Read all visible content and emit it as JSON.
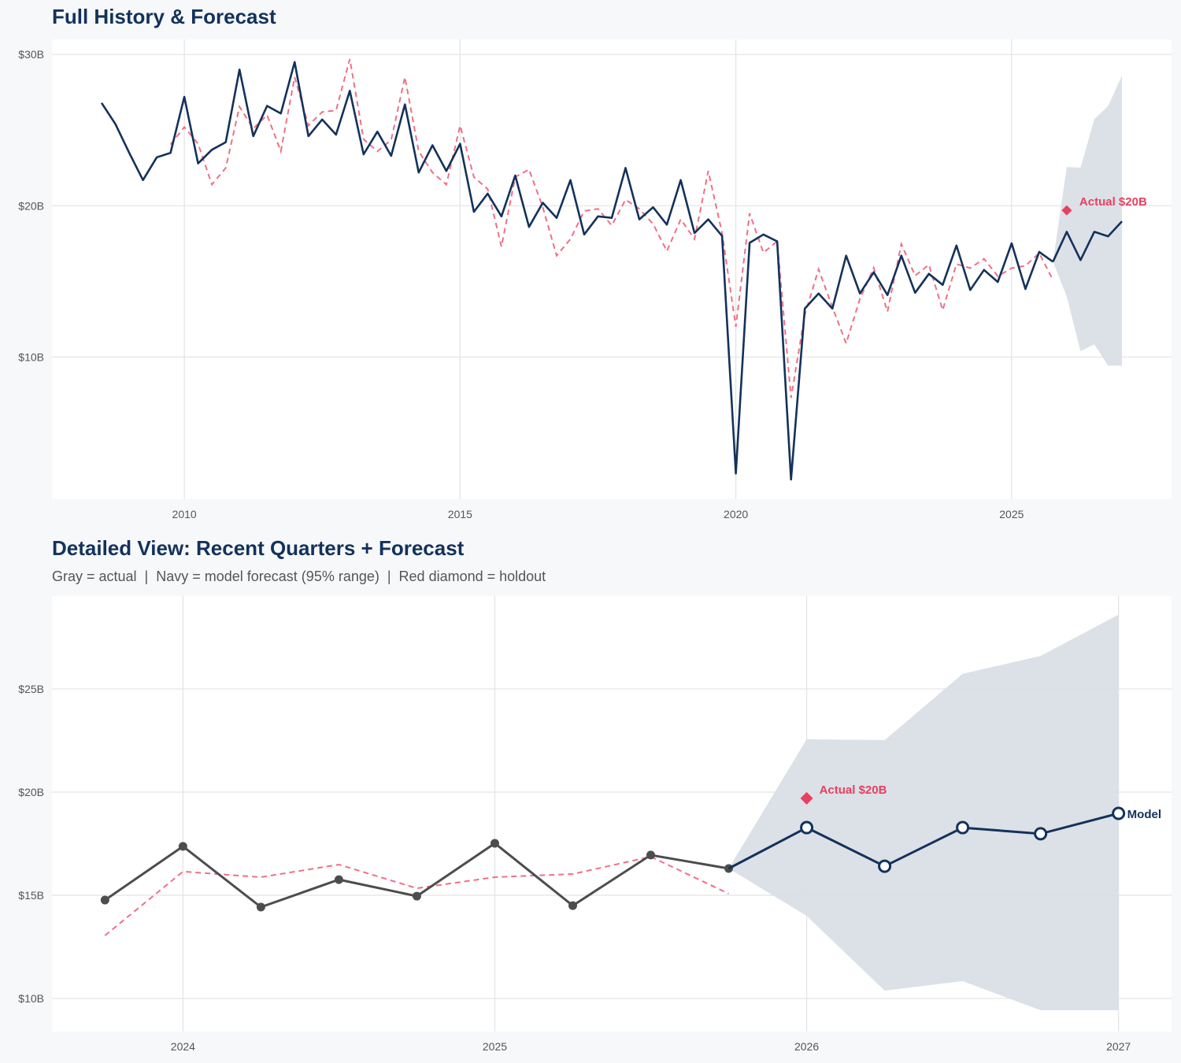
{
  "colors": {
    "navy": "#13325b",
    "red": "#e8405f",
    "red_dashed": "#ef7086",
    "gray": "#4d4d4d",
    "band": "#dadfe6"
  },
  "chart_data": [
    {
      "type": "line",
      "title": "Full History & Forecast",
      "xlim": [
        2007.6,
        2027.9
      ],
      "ylim": [
        0.6,
        31
      ],
      "x_ticks": [
        2010,
        2015,
        2020,
        2025
      ],
      "x_tick_labels": [
        "2010",
        "2015",
        "2020",
        "2025"
      ],
      "y_ticks": [
        10,
        20,
        30
      ],
      "y_tick_labels": [
        "$10B",
        "$20B",
        "$30B"
      ],
      "grid": true,
      "series": [
        {
          "role": "actual",
          "style": "navy solid",
          "x": [
            2008.5,
            2008.75,
            2009,
            2009.25,
            2009.5,
            2009.75,
            2010,
            2010.25,
            2010.5,
            2010.75,
            2011,
            2011.25,
            2011.5,
            2011.75,
            2012,
            2012.25,
            2012.5,
            2012.75,
            2013,
            2013.25,
            2013.5,
            2013.75,
            2014,
            2014.25,
            2014.5,
            2014.75,
            2015,
            2015.25,
            2015.5,
            2015.75,
            2016,
            2016.25,
            2016.5,
            2016.75,
            2017,
            2017.25,
            2017.5,
            2017.75,
            2018,
            2018.25,
            2018.5,
            2018.75,
            2019,
            2019.25,
            2019.5,
            2019.75,
            2020,
            2020.25,
            2020.5,
            2020.75,
            2021,
            2021.25,
            2021.5,
            2021.75,
            2022,
            2022.25,
            2022.5,
            2022.75,
            2023,
            2023.25,
            2023.5,
            2023.75,
            2024,
            2024.25,
            2024.5,
            2024.75,
            2025,
            2025.25,
            2025.5,
            2025.75
          ],
          "y": [
            26.8,
            25.4,
            23.5,
            21.7,
            23.2,
            23.5,
            27.2,
            22.8,
            23.7,
            24.2,
            29.0,
            24.6,
            26.6,
            26.1,
            29.5,
            24.6,
            25.7,
            24.7,
            27.6,
            23.4,
            24.9,
            23.3,
            26.7,
            22.2,
            24.0,
            22.3,
            24.1,
            19.6,
            20.8,
            19.3,
            22.0,
            18.6,
            20.2,
            19.2,
            21.7,
            18.1,
            19.3,
            19.2,
            22.5,
            19.1,
            19.9,
            18.75,
            21.7,
            18.2,
            19.1,
            18.0,
            2.3,
            17.55,
            18.1,
            17.65,
            1.9,
            13.2,
            14.2,
            13.2,
            16.7,
            14.2,
            15.6,
            14.1,
            16.7,
            14.25,
            15.5,
            14.77,
            17.37,
            14.43,
            15.76,
            14.96,
            17.52,
            14.5,
            16.95,
            16.3
          ]
        },
        {
          "role": "fitted",
          "style": "red dashed",
          "x": [
            2009.75,
            2010,
            2010.25,
            2010.5,
            2010.75,
            2011,
            2011.25,
            2011.5,
            2011.75,
            2012,
            2012.25,
            2012.5,
            2012.75,
            2013,
            2013.25,
            2013.5,
            2013.75,
            2014,
            2014.25,
            2014.5,
            2014.75,
            2015,
            2015.25,
            2015.5,
            2015.75,
            2016,
            2016.25,
            2016.5,
            2016.75,
            2017,
            2017.25,
            2017.5,
            2017.75,
            2018,
            2018.25,
            2018.5,
            2018.75,
            2019,
            2019.25,
            2019.5,
            2019.75,
            2020,
            2020.25,
            2020.5,
            2020.75,
            2021,
            2021.25,
            2021.5,
            2021.75,
            2022,
            2022.25,
            2022.5,
            2022.75,
            2023,
            2023.25,
            2023.5,
            2023.75,
            2024,
            2024.25,
            2024.5,
            2024.75,
            2025,
            2025.25,
            2025.5,
            2025.75
          ],
          "y": [
            24.05,
            25.2,
            24.1,
            21.4,
            22.5,
            26.55,
            25.1,
            26.0,
            23.6,
            28.5,
            25.3,
            26.2,
            26.3,
            29.7,
            24.4,
            23.6,
            24.35,
            28.5,
            23.6,
            22.2,
            21.4,
            25.3,
            21.9,
            21.1,
            17.3,
            21.9,
            22.4,
            19.9,
            16.7,
            17.8,
            19.65,
            19.8,
            18.7,
            20.4,
            19.8,
            18.8,
            17.0,
            19.1,
            17.8,
            22.3,
            18.2,
            12.0,
            19.5,
            16.9,
            17.65,
            7.3,
            12.8,
            15.8,
            13.3,
            10.9,
            13.85,
            15.9,
            13.0,
            17.47,
            15.38,
            16.1,
            13.1,
            16.15,
            15.88,
            16.49,
            15.34,
            15.88,
            16.03,
            16.87,
            15.08
          ]
        },
        {
          "role": "forecast",
          "style": "navy solid",
          "x": [
            2025.75,
            2026,
            2026.25,
            2026.5,
            2026.75,
            2027
          ],
          "y": [
            16.3,
            18.28,
            16.41,
            18.28,
            17.98,
            18.97
          ],
          "upper": [
            16.3,
            22.56,
            22.52,
            25.73,
            26.6,
            28.6
          ],
          "lower": [
            16.3,
            14.0,
            10.38,
            10.84,
            9.43,
            9.43
          ]
        }
      ],
      "holdout": {
        "x": 2026,
        "y": 19.7,
        "label": "Actual $20B"
      }
    },
    {
      "type": "line",
      "title": "Detailed View: Recent Quarters + Forecast",
      "subtitle": "Gray = actual  |  Navy = model forecast (95% range)  |  Red diamond = holdout",
      "xlim": [
        2023.58,
        2027.17
      ],
      "ylim": [
        8.4,
        29.5
      ],
      "x_ticks": [
        2024,
        2025,
        2026,
        2027
      ],
      "x_tick_labels": [
        "2024",
        "2025",
        "2026",
        "2027"
      ],
      "y_ticks": [
        10,
        15,
        20,
        25
      ],
      "y_tick_labels": [
        "$10B",
        "$15B",
        "$20B",
        "$25B"
      ],
      "grid": true,
      "series": [
        {
          "role": "actual",
          "style": "gray solid with markers",
          "x": [
            2023.75,
            2024,
            2024.25,
            2024.5,
            2024.75,
            2025,
            2025.25,
            2025.5,
            2025.75
          ],
          "y": [
            14.77,
            17.37,
            14.43,
            15.76,
            14.96,
            17.52,
            14.5,
            16.95,
            16.3
          ]
        },
        {
          "role": "fitted",
          "style": "red dashed",
          "x": [
            2023.75,
            2024,
            2024.25,
            2024.5,
            2024.75,
            2025,
            2025.25,
            2025.5,
            2025.75
          ],
          "y": [
            13.05,
            16.15,
            15.88,
            16.49,
            15.34,
            15.88,
            16.03,
            16.87,
            15.08
          ]
        },
        {
          "role": "forecast",
          "style": "navy solid with hollow markers",
          "name": "Model",
          "x": [
            2025.75,
            2026,
            2026.25,
            2026.5,
            2026.75,
            2027
          ],
          "y": [
            16.3,
            18.28,
            16.41,
            18.28,
            17.98,
            18.97
          ],
          "upper": [
            16.3,
            22.56,
            22.52,
            25.73,
            26.6,
            28.6
          ],
          "lower": [
            16.3,
            14.0,
            10.38,
            10.84,
            9.43,
            9.43
          ]
        }
      ],
      "holdout": {
        "x": 2026,
        "y": 19.7,
        "label": "Actual $20B"
      }
    }
  ]
}
